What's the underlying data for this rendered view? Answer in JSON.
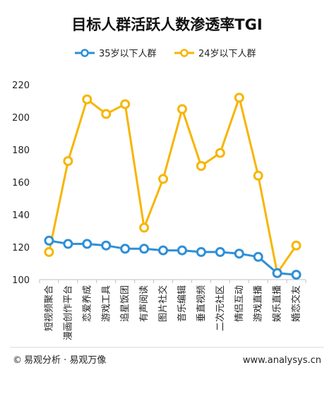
{
  "chart_data": {
    "type": "line",
    "title": "目标人群活跃人数渗透率TGI",
    "categories": [
      "短视频聚合",
      "漫画创作平台",
      "恋爱养成",
      "游戏工具",
      "追星饭团",
      "有声阅读",
      "图片社交",
      "音乐编辑",
      "垂直视频",
      "二次元社区",
      "情侣互动",
      "游戏直播",
      "娱乐直播",
      "婚恋交友"
    ],
    "series": [
      {
        "name": "35岁以下人群",
        "color": "#2e8fd6",
        "values": [
          124,
          122,
          122,
          121,
          119,
          119,
          118,
          118,
          117,
          117,
          116,
          114,
          104,
          103
        ]
      },
      {
        "name": "24岁以下人群",
        "color": "#f7b500",
        "values": [
          117,
          173,
          211,
          202,
          208,
          132,
          162,
          205,
          170,
          178,
          212,
          164,
          104,
          121
        ]
      }
    ],
    "ylim": [
      100,
      220
    ],
    "yticks": [
      100,
      120,
      140,
      160,
      180,
      200,
      220
    ],
    "legend_position": "top",
    "grid": false
  },
  "footer": {
    "source": "易观分析 · 易观万像",
    "copyright_symbol": "©",
    "website": "www.analysys.cn"
  }
}
